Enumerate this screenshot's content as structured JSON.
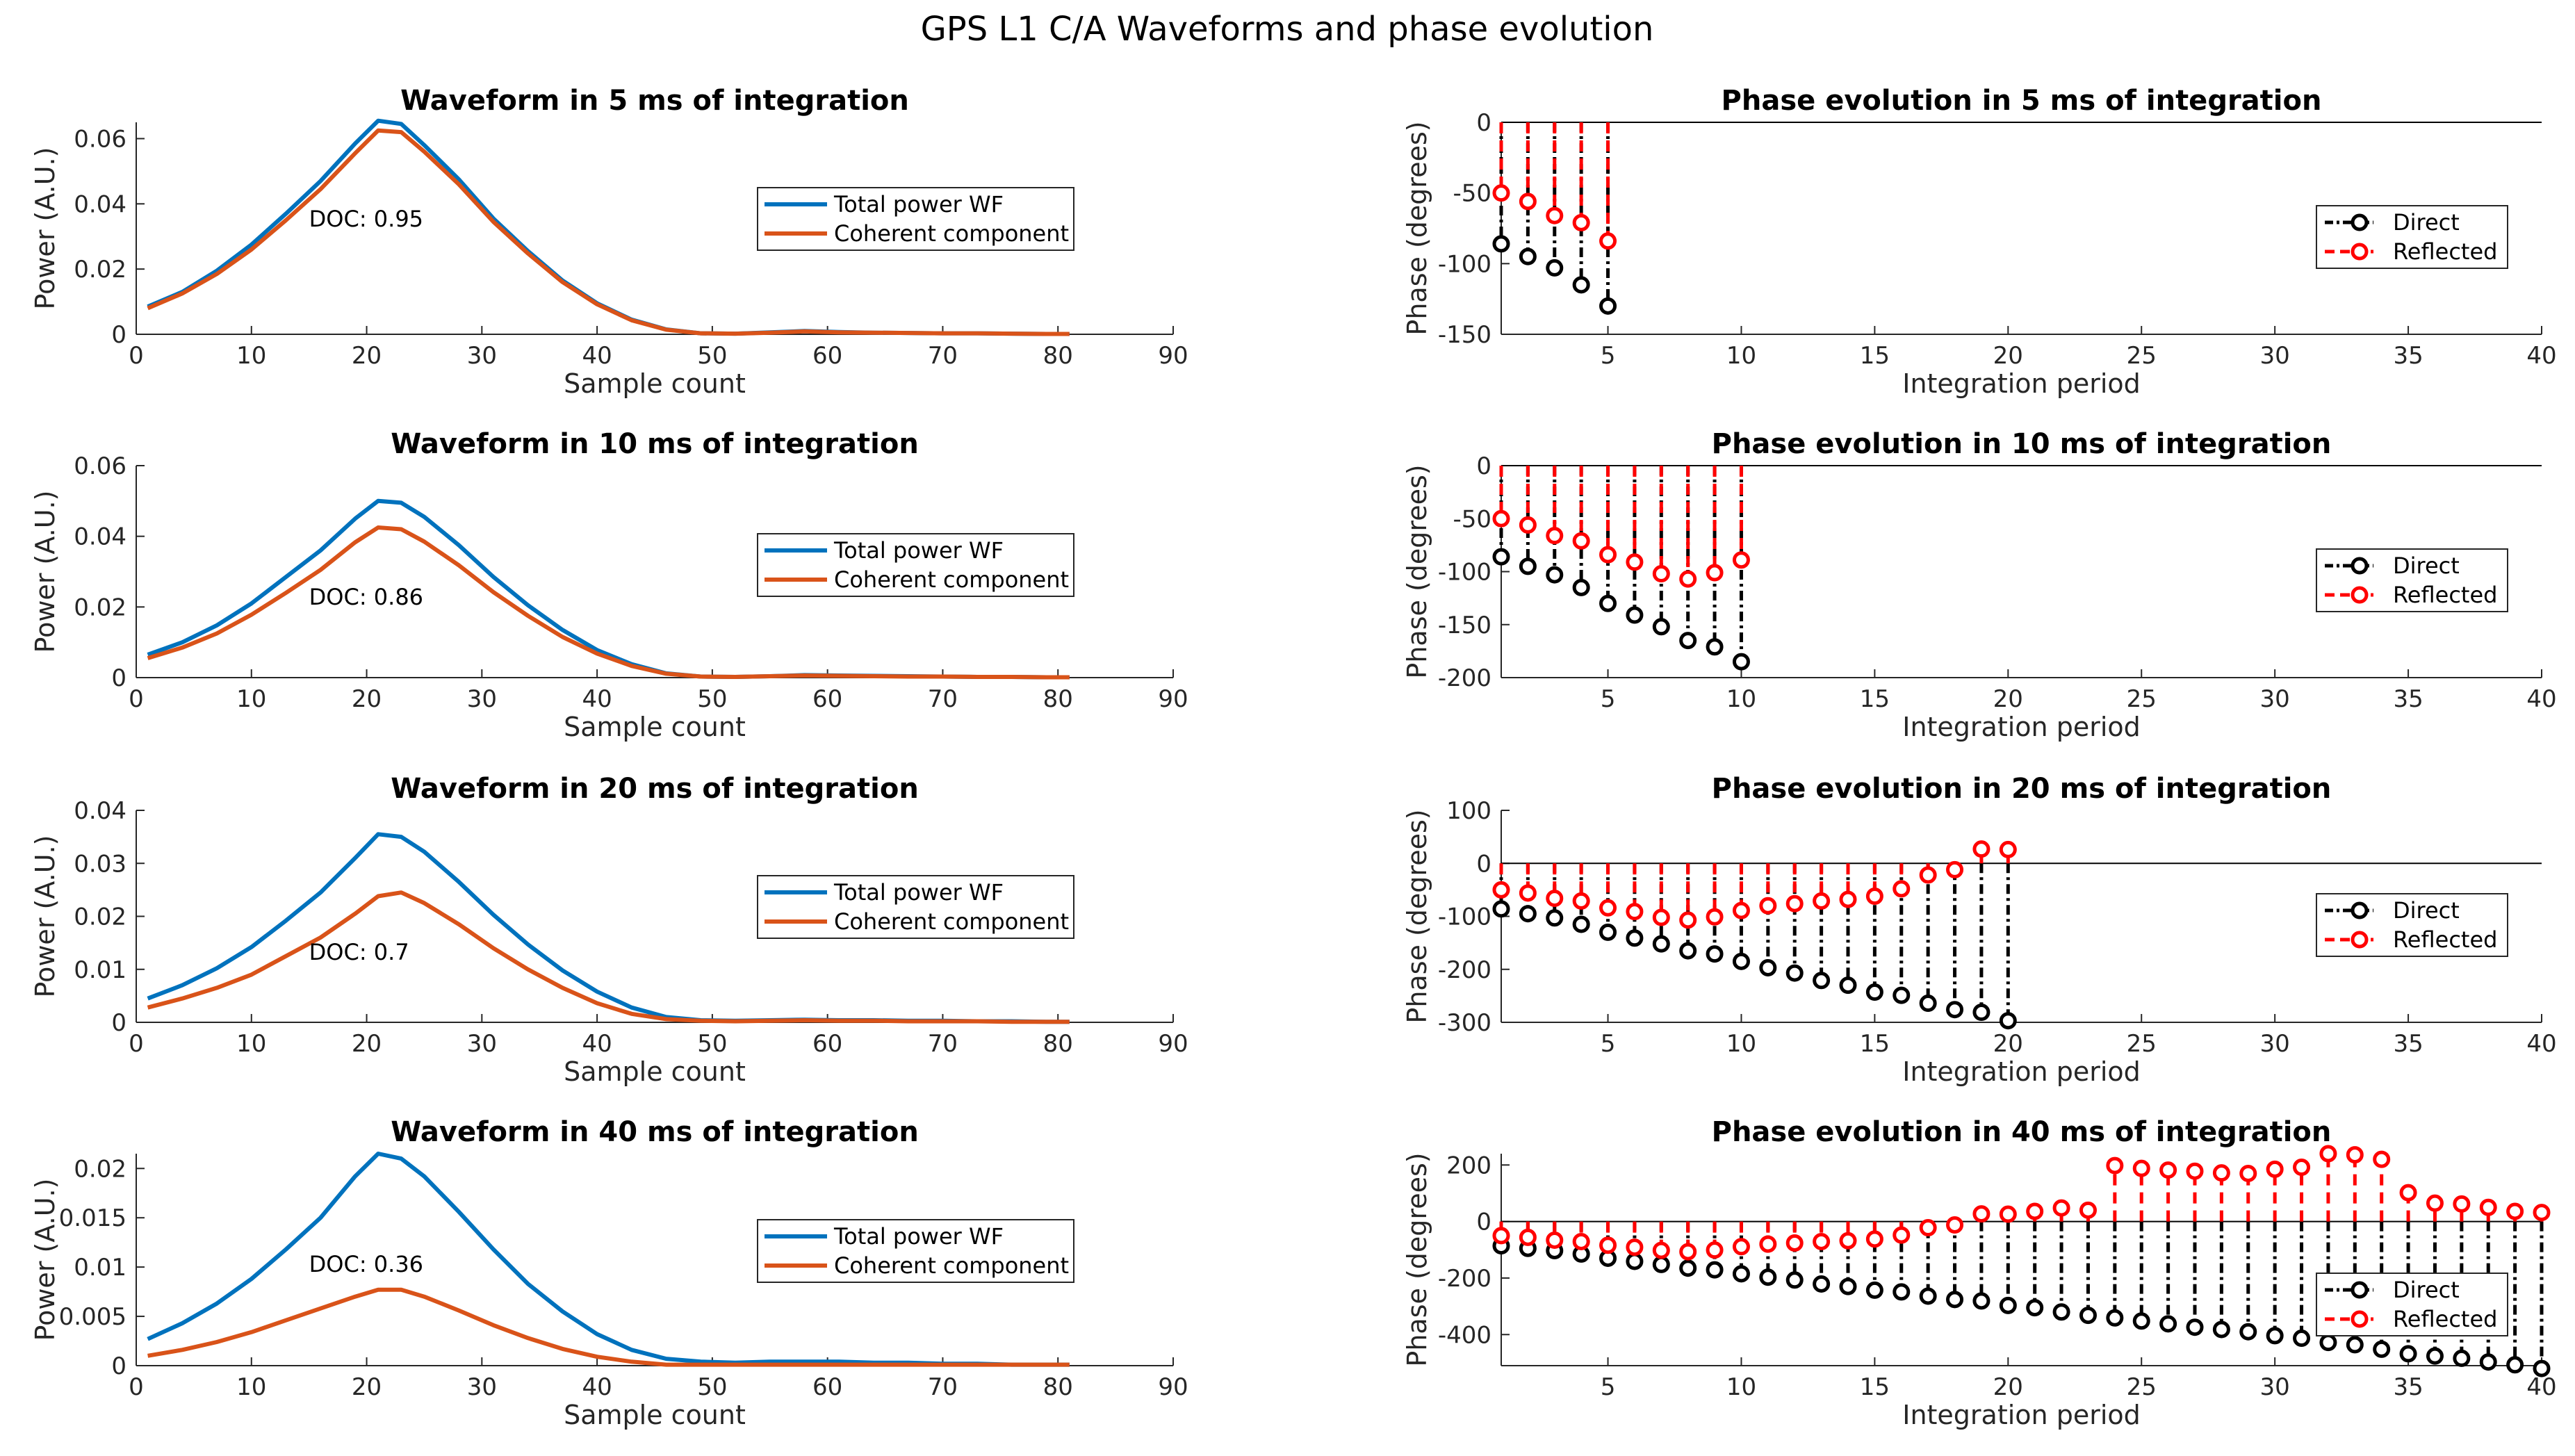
{
  "figure_title": "GPS L1 C/A Waveforms and phase evolution",
  "colors": {
    "total": "#0072BD",
    "coherent": "#D95319",
    "direct": "#000000",
    "reflected": "#FF0000"
  },
  "chart_data": [
    {
      "type": "line",
      "title": "Waveform in 5 ms of integration",
      "xlabel": "Sample count",
      "ylabel": "Power (A.U.)",
      "xlim": [
        0,
        90
      ],
      "ylim": [
        0,
        0.065
      ],
      "xticks": [
        0,
        10,
        20,
        30,
        40,
        50,
        60,
        70,
        80,
        90
      ],
      "yticks": [
        0,
        0.02,
        0.04,
        0.06
      ],
      "ytick_labels": [
        "0",
        "0.02",
        "0.04",
        "0.06"
      ],
      "annotation": "DOC: 0.95",
      "legend": [
        "Total power WF",
        "Coherent component"
      ],
      "x": [
        1,
        4,
        7,
        10,
        13,
        16,
        19,
        21,
        23,
        25,
        28,
        31,
        34,
        37,
        40,
        43,
        46,
        49,
        52,
        55,
        58,
        61,
        64,
        67,
        70,
        73,
        76,
        79,
        81
      ],
      "series": [
        {
          "name": "Total power WF",
          "values": [
            0.0085,
            0.013,
            0.0195,
            0.0275,
            0.037,
            0.047,
            0.0585,
            0.0655,
            0.0645,
            0.058,
            0.0475,
            0.0355,
            0.0255,
            0.0165,
            0.0095,
            0.0045,
            0.0015,
            0.0003,
            0.0002,
            0.0006,
            0.001,
            0.0007,
            0.0005,
            0.0004,
            0.0003,
            0.0003,
            0.0002,
            0.0001,
            0.0001
          ]
        },
        {
          "name": "Coherent component",
          "values": [
            0.008,
            0.0125,
            0.0185,
            0.026,
            0.035,
            0.0445,
            0.0555,
            0.0625,
            0.062,
            0.056,
            0.046,
            0.0345,
            0.0248,
            0.016,
            0.0092,
            0.0043,
            0.0014,
            0.0003,
            0.0002,
            0.0005,
            0.0009,
            0.0006,
            0.0005,
            0.0004,
            0.0003,
            0.0003,
            0.0002,
            0.0001,
            0.0001
          ]
        }
      ]
    },
    {
      "type": "line",
      "title": "Waveform in 10 ms of integration",
      "xlabel": "Sample count",
      "ylabel": "Power (A.U.)",
      "xlim": [
        0,
        90
      ],
      "ylim": [
        0,
        0.06
      ],
      "xticks": [
        0,
        10,
        20,
        30,
        40,
        50,
        60,
        70,
        80,
        90
      ],
      "yticks": [
        0,
        0.02,
        0.04,
        0.06
      ],
      "ytick_labels": [
        "0",
        "0.02",
        "0.04",
        "0.06"
      ],
      "annotation": "DOC: 0.86",
      "legend": [
        "Total power WF",
        "Coherent component"
      ],
      "x": [
        1,
        4,
        7,
        10,
        13,
        16,
        19,
        21,
        23,
        25,
        28,
        31,
        34,
        37,
        40,
        43,
        46,
        49,
        52,
        55,
        58,
        61,
        64,
        67,
        70,
        73,
        76,
        79,
        81
      ],
      "series": [
        {
          "name": "Total power WF",
          "values": [
            0.0065,
            0.01,
            0.0148,
            0.021,
            0.0285,
            0.036,
            0.045,
            0.05,
            0.0495,
            0.0455,
            0.0375,
            0.0285,
            0.0205,
            0.0135,
            0.0078,
            0.0038,
            0.0012,
            0.0003,
            0.0002,
            0.0004,
            0.0007,
            0.0006,
            0.0005,
            0.0004,
            0.0003,
            0.0002,
            0.0002,
            0.0001,
            0.0001
          ]
        },
        {
          "name": "Coherent component",
          "values": [
            0.0055,
            0.0085,
            0.0125,
            0.0178,
            0.024,
            0.0305,
            0.0383,
            0.0425,
            0.042,
            0.0385,
            0.0318,
            0.0242,
            0.0175,
            0.0115,
            0.0068,
            0.0033,
            0.0011,
            0.0003,
            0.0002,
            0.0004,
            0.0006,
            0.0005,
            0.0004,
            0.0003,
            0.0003,
            0.0002,
            0.0002,
            0.0001,
            0.0001
          ]
        }
      ]
    },
    {
      "type": "line",
      "title": "Waveform in 20 ms of integration",
      "xlabel": "Sample count",
      "ylabel": "Power (A.U.)",
      "xlim": [
        0,
        90
      ],
      "ylim": [
        0,
        0.04
      ],
      "xticks": [
        0,
        10,
        20,
        30,
        40,
        50,
        60,
        70,
        80,
        90
      ],
      "yticks": [
        0,
        0.01,
        0.02,
        0.03,
        0.04
      ],
      "ytick_labels": [
        "0",
        "0.01",
        "0.02",
        "0.03",
        "0.04"
      ],
      "annotation": "DOC: 0.7",
      "legend": [
        "Total power WF",
        "Coherent component"
      ],
      "x": [
        1,
        4,
        7,
        10,
        13,
        16,
        19,
        21,
        23,
        25,
        28,
        31,
        34,
        37,
        40,
        43,
        46,
        49,
        52,
        55,
        58,
        61,
        64,
        67,
        70,
        73,
        76,
        79,
        81
      ],
      "series": [
        {
          "name": "Total power WF",
          "values": [
            0.0045,
            0.007,
            0.0102,
            0.0142,
            0.0192,
            0.0245,
            0.031,
            0.0355,
            0.035,
            0.0322,
            0.0265,
            0.0203,
            0.0147,
            0.0098,
            0.0058,
            0.0028,
            0.001,
            0.0004,
            0.0003,
            0.0004,
            0.0005,
            0.0004,
            0.0004,
            0.0003,
            0.0003,
            0.0002,
            0.0002,
            0.0001,
            0.0001
          ]
        },
        {
          "name": "Coherent component",
          "values": [
            0.0028,
            0.0045,
            0.0065,
            0.009,
            0.0125,
            0.016,
            0.0205,
            0.0238,
            0.0245,
            0.0225,
            0.0185,
            0.014,
            0.01,
            0.0065,
            0.0036,
            0.0016,
            0.0006,
            0.0003,
            0.0002,
            0.0003,
            0.0004,
            0.0003,
            0.0003,
            0.0002,
            0.0002,
            0.0002,
            0.0001,
            0.0001,
            0.0001
          ]
        }
      ]
    },
    {
      "type": "line",
      "title": "Waveform in 40 ms of integration",
      "xlabel": "Sample count",
      "ylabel": "Power (A.U.)",
      "xlim": [
        0,
        90
      ],
      "ylim": [
        0,
        0.0215
      ],
      "xticks": [
        0,
        10,
        20,
        30,
        40,
        50,
        60,
        70,
        80,
        90
      ],
      "yticks": [
        0,
        0.005,
        0.01,
        0.015,
        0.02
      ],
      "ytick_labels": [
        "0",
        "0.005",
        "0.01",
        "0.015",
        "0.02"
      ],
      "annotation": "DOC: 0.36",
      "legend": [
        "Total power WF",
        "Coherent component"
      ],
      "x": [
        1,
        4,
        7,
        10,
        13,
        16,
        19,
        21,
        23,
        25,
        28,
        31,
        34,
        37,
        40,
        43,
        46,
        49,
        52,
        55,
        58,
        61,
        64,
        67,
        70,
        73,
        76,
        79,
        81
      ],
      "series": [
        {
          "name": "Total power WF",
          "values": [
            0.0027,
            0.0043,
            0.0063,
            0.0088,
            0.0118,
            0.015,
            0.0192,
            0.0215,
            0.021,
            0.0192,
            0.0156,
            0.0118,
            0.0083,
            0.0055,
            0.0032,
            0.0016,
            0.0007,
            0.0004,
            0.0003,
            0.0004,
            0.0004,
            0.0004,
            0.0003,
            0.0003,
            0.0002,
            0.0002,
            0.0001,
            0.0001,
            0.0001
          ]
        },
        {
          "name": "Coherent component",
          "values": [
            0.001,
            0.0016,
            0.0024,
            0.0034,
            0.0046,
            0.0058,
            0.007,
            0.0077,
            0.0077,
            0.007,
            0.0056,
            0.0041,
            0.0028,
            0.0017,
            0.0009,
            0.0004,
            0.0001,
            0.0001,
            0.0001,
            0.0001,
            0.0001,
            0.0001,
            0.0001,
            0.0001,
            0.0001,
            0.0001,
            0.0001,
            0.0001,
            0.0001
          ]
        }
      ]
    },
    {
      "type": "stem",
      "title": "Phase evolution in 5 ms of integration",
      "xlabel": "Integration period",
      "ylabel": "Phase (degrees)",
      "xlim": [
        1,
        40
      ],
      "ylim": [
        -150,
        0
      ],
      "xticks": [
        5,
        10,
        15,
        20,
        25,
        30,
        35,
        40
      ],
      "yticks": [
        -150,
        -100,
        -50,
        0
      ],
      "legend": [
        "Direct",
        "Reflected"
      ],
      "x": [
        1,
        2,
        3,
        4,
        5
      ],
      "series": [
        {
          "name": "Direct",
          "values": [
            -86,
            -95,
            -103,
            -115,
            -130
          ]
        },
        {
          "name": "Reflected",
          "values": [
            -50,
            -56,
            -66,
            -71,
            -84
          ]
        }
      ]
    },
    {
      "type": "stem",
      "title": "Phase evolution in 10 ms of integration",
      "xlabel": "Integration period",
      "ylabel": "Phase (degrees)",
      "xlim": [
        1,
        40
      ],
      "ylim": [
        -200,
        0
      ],
      "xticks": [
        5,
        10,
        15,
        20,
        25,
        30,
        35,
        40
      ],
      "yticks": [
        -200,
        -150,
        -100,
        -50,
        0
      ],
      "legend": [
        "Direct",
        "Reflected"
      ],
      "x": [
        1,
        2,
        3,
        4,
        5,
        6,
        7,
        8,
        9,
        10
      ],
      "series": [
        {
          "name": "Direct",
          "values": [
            -86,
            -95,
            -103,
            -115,
            -130,
            -141,
            -152,
            -165,
            -171,
            -185
          ]
        },
        {
          "name": "Reflected",
          "values": [
            -50,
            -56,
            -66,
            -71,
            -84,
            -91,
            -102,
            -107,
            -101,
            -89
          ]
        }
      ]
    },
    {
      "type": "stem",
      "title": "Phase evolution in 20 ms of integration",
      "xlabel": "Integration period",
      "ylabel": "Phase (degrees)",
      "xlim": [
        1,
        40
      ],
      "ylim": [
        -300,
        100
      ],
      "xticks": [
        5,
        10,
        15,
        20,
        25,
        30,
        35,
        40
      ],
      "yticks": [
        -300,
        -200,
        -100,
        0,
        100
      ],
      "legend": [
        "Direct",
        "Reflected"
      ],
      "x": [
        1,
        2,
        3,
        4,
        5,
        6,
        7,
        8,
        9,
        10,
        11,
        12,
        13,
        14,
        15,
        16,
        17,
        18,
        19,
        20
      ],
      "series": [
        {
          "name": "Direct",
          "values": [
            -86,
            -95,
            -103,
            -115,
            -130,
            -141,
            -152,
            -165,
            -171,
            -185,
            -197,
            -207,
            -221,
            -230,
            -243,
            -249,
            -264,
            -276,
            -281,
            -297
          ]
        },
        {
          "name": "Reflected",
          "values": [
            -50,
            -56,
            -66,
            -71,
            -84,
            -91,
            -102,
            -107,
            -101,
            -89,
            -80,
            -76,
            -71,
            -68,
            -62,
            -48,
            -22,
            -12,
            27,
            26
          ]
        }
      ]
    },
    {
      "type": "stem",
      "title": "Phase evolution in 40 ms of integration",
      "xlabel": "Integration period",
      "ylabel": "Phase (degrees)",
      "xlim": [
        1,
        40
      ],
      "ylim": [
        -510,
        240
      ],
      "xticks": [
        5,
        10,
        15,
        20,
        25,
        30,
        35,
        40
      ],
      "yticks": [
        -400,
        -200,
        0,
        200
      ],
      "legend": [
        "Direct",
        "Reflected"
      ],
      "x": [
        1,
        2,
        3,
        4,
        5,
        6,
        7,
        8,
        9,
        10,
        11,
        12,
        13,
        14,
        15,
        16,
        17,
        18,
        19,
        20,
        21,
        22,
        23,
        24,
        25,
        26,
        27,
        28,
        29,
        30,
        31,
        32,
        33,
        34,
        35,
        36,
        37,
        38,
        39,
        40
      ],
      "series": [
        {
          "name": "Direct",
          "values": [
            -86,
            -95,
            -103,
            -115,
            -130,
            -141,
            -152,
            -165,
            -171,
            -185,
            -197,
            -207,
            -221,
            -230,
            -243,
            -249,
            -264,
            -276,
            -281,
            -297,
            -305,
            -320,
            -332,
            -341,
            -352,
            -362,
            -374,
            -382,
            -390,
            -404,
            -413,
            -428,
            -436,
            -452,
            -468,
            -476,
            -484,
            -497,
            -507,
            -520
          ]
        },
        {
          "name": "Reflected",
          "values": [
            -50,
            -56,
            -66,
            -71,
            -84,
            -91,
            -102,
            -107,
            -101,
            -89,
            -80,
            -76,
            -71,
            -68,
            -62,
            -48,
            -22,
            -12,
            27,
            26,
            36,
            48,
            40,
            198,
            188,
            182,
            178,
            172,
            170,
            185,
            192,
            240,
            236,
            220,
            102,
            65,
            62,
            50,
            36,
            32
          ]
        }
      ]
    }
  ]
}
